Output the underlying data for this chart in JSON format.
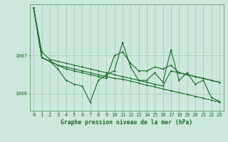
{
  "xlabel": "Graphe pression niveau de la mer (hPa)",
  "background_color": "#cce8dc",
  "grid_color": "#99ccb3",
  "line_color": "#1a6b2a",
  "x": [
    0,
    1,
    2,
    3,
    4,
    5,
    6,
    7,
    8,
    9,
    10,
    11,
    12,
    13,
    14,
    15,
    16,
    17,
    18,
    19,
    20,
    21,
    22,
    23
  ],
  "series": [
    [
      1008.25,
      1007.1,
      1006.9,
      1006.85,
      1006.8,
      1006.75,
      1006.7,
      1006.65,
      1006.6,
      1006.55,
      1006.5,
      1006.45,
      1006.4,
      1006.35,
      1006.3,
      1006.25,
      1006.2,
      1006.6,
      1006.55,
      1006.5,
      1006.45,
      1006.4,
      1006.35,
      1006.3
    ],
    [
      1008.25,
      1006.95,
      1006.85,
      1006.65,
      1006.35,
      1006.25,
      1006.2,
      1005.78,
      1006.35,
      1006.5,
      1006.6,
      1007.35,
      1006.7,
      1006.35,
      1006.35,
      1006.55,
      1006.3,
      1007.15,
      1006.35,
      1006.55,
      1006.25,
      1006.35,
      1005.9,
      1005.8
    ],
    [
      1008.25,
      1006.95,
      1006.85,
      1006.75,
      1006.65,
      1006.6,
      1006.55,
      1006.5,
      1006.45,
      1006.4,
      1007.0,
      1007.1,
      1006.8,
      1006.6,
      1006.6,
      1006.7,
      1006.65,
      1006.75,
      1006.55,
      1006.5,
      1006.45,
      1006.4,
      1006.35,
      1006.3
    ],
    [
      1008.25,
      1006.95,
      1006.85,
      1006.75,
      1006.7,
      1006.65,
      1006.6,
      1006.55,
      1006.5,
      1006.45,
      1006.4,
      1006.38,
      1006.33,
      1006.28,
      1006.22,
      1006.18,
      1006.12,
      1006.08,
      1006.03,
      1005.98,
      1005.93,
      1005.88,
      1005.83,
      1005.78
    ]
  ],
  "ylim": [
    1005.55,
    1008.35
  ],
  "yticks": [
    1006,
    1007
  ],
  "ytick_labels": [
    "1006",
    "1007"
  ],
  "xlim": [
    -0.5,
    23.5
  ],
  "xticks": [
    0,
    1,
    2,
    3,
    4,
    5,
    6,
    7,
    8,
    9,
    10,
    11,
    12,
    13,
    14,
    15,
    16,
    17,
    18,
    19,
    20,
    21,
    22,
    23
  ],
  "tick_fontsize": 5.0,
  "label_fontsize": 5.8
}
